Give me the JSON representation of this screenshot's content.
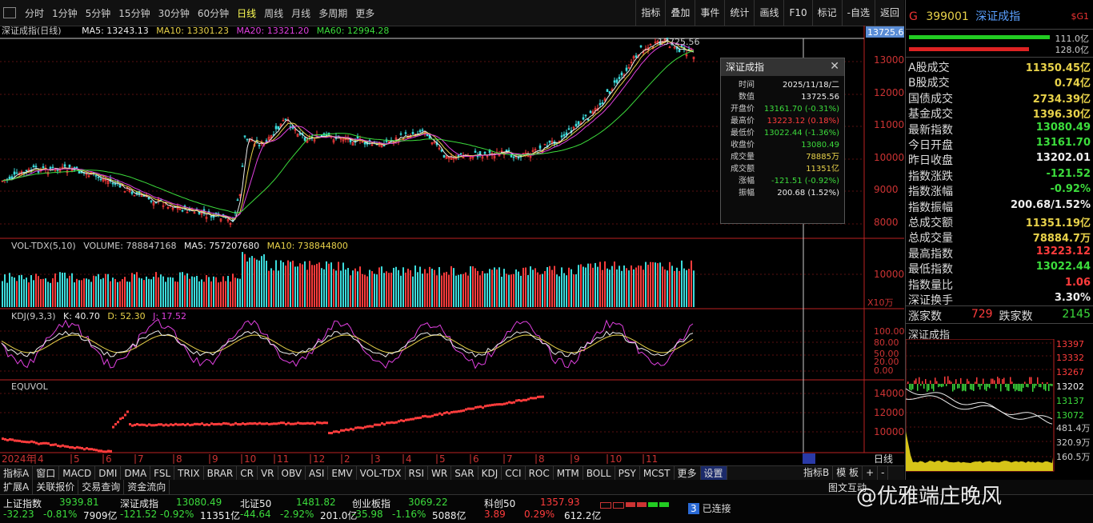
{
  "toolbar": {
    "periods": [
      "分时",
      "1分钟",
      "5分钟",
      "15分钟",
      "30分钟",
      "60分钟",
      "日线",
      "周线",
      "月线",
      "多周期",
      "更多"
    ],
    "active_period": "日线",
    "right_buttons": [
      "指标",
      "叠加",
      "事件",
      "统计",
      "画线",
      "F10",
      "标记",
      "-自选",
      "返回"
    ]
  },
  "chart_header": {
    "name": "深证成指(日线)",
    "ma5": "MA5: 13243.13",
    "ma10": "MA10: 13301.23",
    "ma20": "MA20: 13321.20",
    "ma60": "MA60: 12994.28",
    "cursor_value": "13725.6",
    "peak_label": "13725.56"
  },
  "price_axis": [
    "13000",
    "12000",
    "11000",
    "10000",
    "9000",
    "8000"
  ],
  "volume_header": {
    "name": "VOL-TDX(5,10)",
    "volume": "VOLUME: 788847168",
    "ma5": "MA5: 757207680",
    "ma10": "MA10: 738844800",
    "axis": "10000",
    "unit": "X10万"
  },
  "kdj_header": {
    "name": "KDJ(9,3,3)",
    "k": "K: 40.70",
    "d": "D: 52.30",
    "j": "J: 17.52",
    "axis": [
      "100.00",
      "80.00",
      "50.00",
      "20.00",
      "0.00"
    ]
  },
  "equvol_header": {
    "name": "EQUVOL",
    "axis": [
      "14000",
      "12000",
      "10000"
    ]
  },
  "time_axis": [
    "2024年",
    "4",
    "5",
    "6",
    "7",
    "8",
    "9",
    "10",
    "11",
    "12",
    "2",
    "3",
    "4",
    "5",
    "6",
    "7",
    "8",
    "9",
    "10",
    "11"
  ],
  "time_axis_right": "日线",
  "tooltip": {
    "title": "深证成指",
    "rows": [
      {
        "k": "时间",
        "v": "2025/11/18/二",
        "c": "white"
      },
      {
        "k": "数值",
        "v": "13725.56",
        "c": "white"
      },
      {
        "k": "开盘价",
        "v": "13161.70 (-0.31%)",
        "c": "green"
      },
      {
        "k": "最高价",
        "v": "13223.12 (0.18%)",
        "c": "red"
      },
      {
        "k": "最低价",
        "v": "13022.44 (-1.36%)",
        "c": "green"
      },
      {
        "k": "收盘价",
        "v": "13080.49",
        "c": "green"
      },
      {
        "k": "成交量",
        "v": "78885万",
        "c": "yellow"
      },
      {
        "k": "成交额",
        "v": "11351亿",
        "c": "yellow"
      },
      {
        "k": "涨幅",
        "v": "-121.51 (-0.92%)",
        "c": "green"
      },
      {
        "k": "振幅",
        "v": "200.68 (1.52%)",
        "c": "white"
      }
    ]
  },
  "right_panel": {
    "code": "399001",
    "name": "深证成指",
    "tag": "$G1",
    "bar_top": "111.0亿",
    "bar_bottom": "128.0亿",
    "rows": [
      {
        "k": "A股成交",
        "v": "11350.45亿",
        "c": "yellow"
      },
      {
        "k": "B股成交",
        "v": "0.74亿",
        "c": "yellow"
      },
      {
        "k": "国债成交",
        "v": "2734.39亿",
        "c": "yellow"
      },
      {
        "k": "基金成交",
        "v": "1396.30亿",
        "c": "yellow"
      },
      {
        "k": "最新指数",
        "v": "13080.49",
        "c": "green"
      },
      {
        "k": "今日开盘",
        "v": "13161.70",
        "c": "green"
      },
      {
        "k": "昨日收盘",
        "v": "13202.01",
        "c": "white"
      },
      {
        "k": "指数涨跌",
        "v": "-121.52",
        "c": "green"
      },
      {
        "k": "指数涨幅",
        "v": "-0.92%",
        "c": "green"
      },
      {
        "k": "指数振幅",
        "v": "200.68/1.52%",
        "c": "white"
      },
      {
        "k": "总成交额",
        "v": "11351.19亿",
        "c": "yellow"
      },
      {
        "k": "总成交量",
        "v": "78884.7万",
        "c": "yellow"
      },
      {
        "k": "最高指数",
        "v": "13223.12",
        "c": "red"
      },
      {
        "k": "最低指数",
        "v": "13022.44",
        "c": "green"
      },
      {
        "k": "指数量比",
        "v": "1.06",
        "c": "red"
      },
      {
        "k": "深证换手",
        "v": "3.30%",
        "c": "white"
      }
    ],
    "up_label": "涨家数",
    "up_count": "729",
    "down_label": "跌家数",
    "down_count": "2145",
    "mini_title": "深证成指",
    "mini_axis": [
      "13397",
      "13332",
      "13267",
      "13202",
      "13137",
      "13072"
    ],
    "mini_vol_axis": [
      "481.4万",
      "320.9万",
      "160.5万"
    ]
  },
  "indicator_tabs": [
    "指标A",
    "窗口",
    "MACD",
    "DMI",
    "DMA",
    "FSL",
    "TRIX",
    "BRAR",
    "CR",
    "VR",
    "OBV",
    "ASI",
    "EMV",
    "VOL-TDX",
    "RSI",
    "WR",
    "SAR",
    "KDJ",
    "CCI",
    "ROC",
    "MTM",
    "BOLL",
    "PSY",
    "MCST",
    "更多",
    "设置"
  ],
  "indicator_tabs_right": [
    "指标B",
    "模 板",
    "+",
    "-"
  ],
  "bottom_tabs": [
    "扩展A",
    "关联报价",
    "交易查询",
    "资金流向"
  ],
  "bottom_right": "图文互动",
  "status": [
    {
      "name": "上证指数",
      "val": "3939.81",
      "chg": "-32.23",
      "pct": "-0.81%",
      "amt": "7909亿"
    },
    {
      "name": "深证成指",
      "val": "13080.49",
      "chg": "-121.52",
      "pct": "-0.92%",
      "amt": "11351亿"
    },
    {
      "name": "北证50",
      "val": "1481.82",
      "chg": "-44.64",
      "pct": "-2.92%",
      "amt": "201.0亿"
    },
    {
      "name": "创业板指",
      "val": "3069.22",
      "chg": "-35.98",
      "pct": "-1.16%",
      "amt": "5088亿"
    },
    {
      "name": "科创50",
      "val": "1357.93",
      "chg": "3.89",
      "pct": "0.29%",
      "amt": "612.2亿"
    }
  ],
  "connection": "已连接",
  "connection_num": "3",
  "watermark": "@优雅端庄晚风"
}
